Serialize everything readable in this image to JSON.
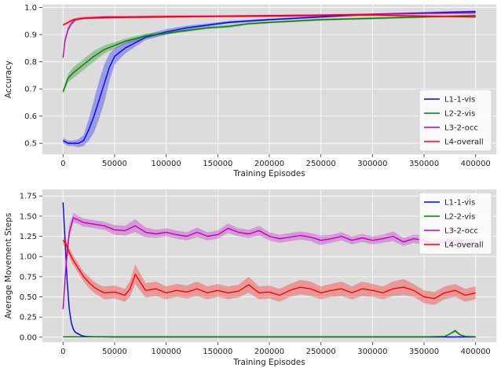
{
  "chart_data": [
    {
      "type": "line",
      "title": "",
      "xlabel": "Training Episodes",
      "ylabel": "Accuracy",
      "xlim": [
        -20000,
        420000
      ],
      "ylim": [
        0.46,
        1.01
      ],
      "xticks": [
        0,
        50000,
        100000,
        150000,
        200000,
        250000,
        300000,
        350000,
        400000
      ],
      "yticks": [
        0.5,
        0.6,
        0.7,
        0.8,
        0.9,
        1.0
      ],
      "ytick_labels": [
        "0.5",
        "0.6",
        "0.7",
        "0.8",
        "0.9",
        "1.0"
      ],
      "grid": true,
      "legend": "bottom-right",
      "series": [
        {
          "name": "L1-1-vis",
          "color": "#0000ff",
          "x": [
            0,
            5000,
            10000,
            15000,
            20000,
            25000,
            30000,
            35000,
            40000,
            45000,
            50000,
            60000,
            70000,
            80000,
            90000,
            100000,
            120000,
            140000,
            160000,
            180000,
            200000,
            250000,
            300000,
            350000,
            400000
          ],
          "y": [
            0.51,
            0.5,
            0.5,
            0.5,
            0.51,
            0.55,
            0.6,
            0.66,
            0.72,
            0.78,
            0.82,
            0.85,
            0.87,
            0.89,
            0.9,
            0.91,
            0.925,
            0.935,
            0.945,
            0.95,
            0.955,
            0.965,
            0.975,
            0.98,
            0.985
          ],
          "band": [
            0.01,
            0.01,
            0.01,
            0.015,
            0.02,
            0.04,
            0.06,
            0.07,
            0.07,
            0.05,
            0.03,
            0.02,
            0.015,
            0.01,
            0.01,
            0.01,
            0.008,
            0.006,
            0.005,
            0.005,
            0.004,
            0.004,
            0.003,
            0.003,
            0.003
          ]
        },
        {
          "name": "L2-2-vis",
          "color": "#008000",
          "x": [
            0,
            5000,
            10000,
            20000,
            30000,
            40000,
            50000,
            60000,
            70000,
            80000,
            100000,
            120000,
            140000,
            160000,
            180000,
            200000,
            250000,
            300000,
            350000,
            400000
          ],
          "y": [
            0.69,
            0.74,
            0.76,
            0.79,
            0.82,
            0.845,
            0.86,
            0.875,
            0.885,
            0.895,
            0.905,
            0.915,
            0.925,
            0.93,
            0.94,
            0.945,
            0.955,
            0.96,
            0.965,
            0.97
          ],
          "band": [
            0.01,
            0.015,
            0.02,
            0.02,
            0.02,
            0.015,
            0.012,
            0.01,
            0.01,
            0.008,
            0.006,
            0.005,
            0.005,
            0.005,
            0.004,
            0.004,
            0.004,
            0.004,
            0.004,
            0.004
          ]
        },
        {
          "name": "L3-2-occ",
          "color": "#c000c0",
          "x": [
            0,
            2000,
            5000,
            8000,
            12000,
            18000,
            25000,
            40000,
            60000,
            100000,
            150000,
            200000,
            250000,
            300000,
            350000,
            400000
          ],
          "y": [
            0.815,
            0.88,
            0.92,
            0.94,
            0.955,
            0.96,
            0.962,
            0.965,
            0.965,
            0.967,
            0.968,
            0.97,
            0.972,
            0.975,
            0.978,
            0.98
          ],
          "band": [
            0.005,
            0.01,
            0.01,
            0.008,
            0.006,
            0.005,
            0.004,
            0.004,
            0.004,
            0.004,
            0.003,
            0.003,
            0.003,
            0.003,
            0.003,
            0.003
          ]
        },
        {
          "name": "L4-overall",
          "color": "#ff0000",
          "x": [
            0,
            5000,
            10000,
            20000,
            40000,
            60000,
            100000,
            150000,
            200000,
            250000,
            300000,
            350000,
            400000
          ],
          "y": [
            0.935,
            0.945,
            0.955,
            0.96,
            0.962,
            0.963,
            0.965,
            0.967,
            0.968,
            0.97,
            0.972,
            0.968,
            0.965
          ],
          "band": [
            0.005,
            0.005,
            0.004,
            0.004,
            0.004,
            0.004,
            0.004,
            0.004,
            0.004,
            0.004,
            0.004,
            0.004,
            0.004
          ]
        }
      ]
    },
    {
      "type": "line",
      "title": "",
      "xlabel": "Training Episodes",
      "ylabel": "Average Movement Steps",
      "xlim": [
        -20000,
        420000
      ],
      "ylim": [
        -0.06,
        1.83
      ],
      "xticks": [
        0,
        50000,
        100000,
        150000,
        200000,
        250000,
        300000,
        350000,
        400000
      ],
      "yticks": [
        0,
        0.25,
        0.5,
        0.75,
        1.0,
        1.25,
        1.5,
        1.75
      ],
      "ytick_labels": [
        "0.00",
        "0.25",
        "0.50",
        "0.75",
        "1.00",
        "1.25",
        "1.50",
        "1.75"
      ],
      "grid": true,
      "legend": "top-right",
      "series": [
        {
          "name": "L1-1-vis",
          "color": "#0000ff",
          "x": [
            0,
            2000,
            4000,
            6000,
            8000,
            10000,
            12000,
            15000,
            18000,
            22000,
            30000,
            50000,
            100000,
            200000,
            300000,
            400000
          ],
          "y": [
            1.67,
            1.2,
            0.7,
            0.35,
            0.18,
            0.1,
            0.06,
            0.04,
            0.02,
            0.01,
            0.005,
            0.003,
            0.003,
            0.003,
            0.003,
            0.003
          ],
          "band": [
            0.02,
            0.05,
            0.05,
            0.04,
            0.03,
            0.02,
            0.01,
            0.01,
            0.005,
            0.005,
            0.003,
            0.002,
            0.002,
            0.002,
            0.002,
            0.002
          ]
        },
        {
          "name": "L2-2-vis",
          "color": "#008000",
          "x": [
            0,
            50000,
            100000,
            150000,
            200000,
            250000,
            300000,
            350000,
            370000,
            375000,
            380000,
            385000,
            390000,
            400000
          ],
          "y": [
            0.005,
            0.005,
            0.005,
            0.005,
            0.005,
            0.005,
            0.005,
            0.005,
            0.01,
            0.04,
            0.08,
            0.03,
            0.01,
            0.005
          ],
          "band": [
            0.003,
            0.003,
            0.003,
            0.003,
            0.003,
            0.003,
            0.003,
            0.003,
            0.005,
            0.01,
            0.02,
            0.01,
            0.005,
            0.003
          ]
        },
        {
          "name": "L3-2-occ",
          "color": "#c000c0",
          "x": [
            0,
            3000,
            6000,
            10000,
            15000,
            20000,
            30000,
            40000,
            50000,
            60000,
            70000,
            80000,
            90000,
            100000,
            110000,
            120000,
            130000,
            140000,
            150000,
            160000,
            170000,
            180000,
            190000,
            200000,
            210000,
            220000,
            230000,
            240000,
            250000,
            260000,
            270000,
            280000,
            290000,
            300000,
            310000,
            320000,
            330000,
            340000,
            350000,
            360000,
            370000,
            380000,
            390000,
            400000
          ],
          "y": [
            0.35,
            0.9,
            1.3,
            1.48,
            1.45,
            1.42,
            1.4,
            1.38,
            1.33,
            1.32,
            1.38,
            1.3,
            1.28,
            1.3,
            1.27,
            1.25,
            1.3,
            1.25,
            1.27,
            1.35,
            1.3,
            1.28,
            1.32,
            1.25,
            1.22,
            1.24,
            1.26,
            1.24,
            1.2,
            1.22,
            1.25,
            1.2,
            1.23,
            1.2,
            1.22,
            1.25,
            1.18,
            1.22,
            1.2,
            1.15,
            1.18,
            1.2,
            1.15,
            1.17
          ],
          "band": [
            0.05,
            0.1,
            0.08,
            0.06,
            0.05,
            0.05,
            0.05,
            0.05,
            0.06,
            0.06,
            0.08,
            0.06,
            0.05,
            0.05,
            0.05,
            0.05,
            0.06,
            0.05,
            0.05,
            0.06,
            0.05,
            0.05,
            0.06,
            0.05,
            0.05,
            0.05,
            0.05,
            0.05,
            0.06,
            0.05,
            0.05,
            0.05,
            0.05,
            0.05,
            0.05,
            0.06,
            0.05,
            0.05,
            0.06,
            0.05,
            0.05,
            0.05,
            0.06,
            0.05
          ]
        },
        {
          "name": "L4-overall",
          "color": "#ff0000",
          "x": [
            0,
            3000,
            6000,
            10000,
            15000,
            20000,
            25000,
            30000,
            35000,
            40000,
            50000,
            60000,
            65000,
            70000,
            80000,
            90000,
            100000,
            110000,
            120000,
            130000,
            140000,
            150000,
            160000,
            170000,
            180000,
            190000,
            200000,
            210000,
            220000,
            230000,
            240000,
            250000,
            260000,
            270000,
            280000,
            290000,
            300000,
            310000,
            320000,
            330000,
            340000,
            350000,
            360000,
            370000,
            380000,
            390000,
            400000
          ],
          "y": [
            1.2,
            1.15,
            1.05,
            0.95,
            0.85,
            0.75,
            0.68,
            0.62,
            0.58,
            0.55,
            0.56,
            0.52,
            0.6,
            0.78,
            0.58,
            0.6,
            0.55,
            0.58,
            0.56,
            0.6,
            0.55,
            0.58,
            0.55,
            0.57,
            0.65,
            0.55,
            0.56,
            0.52,
            0.58,
            0.62,
            0.6,
            0.55,
            0.58,
            0.6,
            0.55,
            0.6,
            0.58,
            0.55,
            0.6,
            0.62,
            0.58,
            0.5,
            0.48,
            0.55,
            0.58,
            0.52,
            0.55
          ],
          "band": [
            0.05,
            0.06,
            0.06,
            0.06,
            0.06,
            0.06,
            0.07,
            0.07,
            0.07,
            0.08,
            0.08,
            0.08,
            0.1,
            0.12,
            0.09,
            0.09,
            0.08,
            0.08,
            0.08,
            0.09,
            0.08,
            0.08,
            0.08,
            0.08,
            0.1,
            0.08,
            0.08,
            0.08,
            0.08,
            0.09,
            0.09,
            0.08,
            0.08,
            0.09,
            0.08,
            0.09,
            0.08,
            0.08,
            0.09,
            0.1,
            0.08,
            0.08,
            0.08,
            0.08,
            0.08,
            0.08,
            0.08
          ]
        }
      ]
    }
  ]
}
